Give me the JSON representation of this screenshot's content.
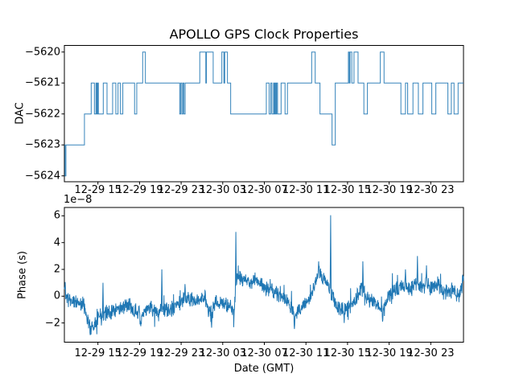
{
  "figure": {
    "background": "#ffffff",
    "line_color": "#1f77b4",
    "axis_color": "#000000"
  },
  "chart_data": [
    {
      "type": "line",
      "subplot": "top",
      "title": "APOLLO GPS Clock Properties",
      "ylabel": "DAC",
      "line_color": "#1f77b4",
      "style": "step-post",
      "xlim_hours": [
        0,
        38.38
      ],
      "ylim": [
        -5624.2,
        -5619.78
      ],
      "yticks": [
        -5620,
        -5621,
        -5622,
        -5623,
        -5624
      ],
      "ytick_labels": [
        "−5620",
        "−5621",
        "−5622",
        "−5623",
        "−5624"
      ],
      "xticks_hours": [
        3.23,
        7.23,
        11.23,
        15.23,
        19.23,
        23.23,
        27.23,
        31.23,
        35.23
      ],
      "xtick_labels": [
        "12-29 15",
        "12-29 19",
        "12-29 23",
        "12-30 03",
        "12-30 07",
        "12-30 11",
        "12-30 15",
        "12-30 19",
        "12-30 23"
      ],
      "grid": false,
      "step_points_hours_dac": [
        [
          0,
          -5623
        ],
        [
          0.06,
          -5624
        ],
        [
          0.15,
          -5623
        ],
        [
          1.93,
          -5622
        ],
        [
          2.58,
          -5621
        ],
        [
          2.89,
          -5622
        ],
        [
          3.04,
          -5621
        ],
        [
          3.12,
          -5622
        ],
        [
          3.2,
          -5621
        ],
        [
          3.27,
          -5622
        ],
        [
          3.74,
          -5621
        ],
        [
          4.1,
          -5622
        ],
        [
          4.64,
          -5621
        ],
        [
          4.95,
          -5622
        ],
        [
          5.16,
          -5621
        ],
        [
          5.39,
          -5622
        ],
        [
          5.62,
          -5621
        ],
        [
          6.75,
          -5622
        ],
        [
          6.96,
          -5621
        ],
        [
          7.53,
          -5620
        ],
        [
          7.79,
          -5621
        ],
        [
          11.09,
          -5622
        ],
        [
          11.19,
          -5621
        ],
        [
          11.3,
          -5622
        ],
        [
          11.4,
          -5621
        ],
        [
          11.5,
          -5622
        ],
        [
          11.61,
          -5621
        ],
        [
          13.02,
          -5620
        ],
        [
          13.6,
          -5621
        ],
        [
          13.66,
          -5620
        ],
        [
          14.31,
          -5621
        ],
        [
          15.14,
          -5620
        ],
        [
          15.34,
          -5621
        ],
        [
          15.42,
          -5620
        ],
        [
          15.68,
          -5621
        ],
        [
          15.99,
          -5622
        ],
        [
          19.42,
          -5621
        ],
        [
          19.69,
          -5622
        ],
        [
          19.85,
          -5621
        ],
        [
          19.96,
          -5622
        ],
        [
          20.12,
          -5621
        ],
        [
          20.19,
          -5622
        ],
        [
          20.27,
          -5621
        ],
        [
          20.35,
          -5622
        ],
        [
          20.41,
          -5621
        ],
        [
          20.5,
          -5622
        ],
        [
          20.84,
          -5621
        ],
        [
          21.22,
          -5622
        ],
        [
          21.45,
          -5621
        ],
        [
          23.78,
          -5620
        ],
        [
          24.12,
          -5621
        ],
        [
          24.58,
          -5622
        ],
        [
          25.74,
          -5623
        ],
        [
          26.05,
          -5621
        ],
        [
          27.31,
          -5620
        ],
        [
          27.4,
          -5621
        ],
        [
          27.47,
          -5620
        ],
        [
          27.64,
          -5621
        ],
        [
          27.85,
          -5620
        ],
        [
          28.24,
          -5621
        ],
        [
          28.8,
          -5622
        ],
        [
          29.14,
          -5621
        ],
        [
          30.38,
          -5620
        ],
        [
          30.74,
          -5621
        ],
        [
          32.36,
          -5622
        ],
        [
          32.8,
          -5621
        ],
        [
          33.01,
          -5622
        ],
        [
          33.52,
          -5621
        ],
        [
          34.04,
          -5622
        ],
        [
          34.48,
          -5621
        ],
        [
          35.33,
          -5622
        ],
        [
          35.72,
          -5621
        ],
        [
          36.88,
          -5622
        ],
        [
          37.21,
          -5621
        ],
        [
          37.47,
          -5622
        ],
        [
          37.86,
          -5621
        ]
      ]
    },
    {
      "type": "line",
      "subplot": "bottom",
      "ylabel": "Phase (s)",
      "xlabel": "Date (GMT)",
      "y_offset_text": "1e−8",
      "line_color": "#1f77b4",
      "xlim_hours": [
        0,
        38.38
      ],
      "ylim_1e8": [
        -3.44,
        6.62
      ],
      "yticks_1e8": [
        6,
        4,
        2,
        0,
        -2
      ],
      "ytick_labels": [
        "6",
        "4",
        "2",
        "0",
        "−2"
      ],
      "xticks_hours": [
        3.23,
        7.23,
        11.23,
        15.23,
        19.23,
        23.23,
        27.23,
        31.23,
        35.23
      ],
      "xtick_labels": [
        "12-29 15",
        "12-29 19",
        "12-29 23",
        "12-30 03",
        "12-30 07",
        "12-30 11",
        "12-30 15",
        "12-30 19",
        "12-30 23"
      ],
      "grid": false,
      "trend_hours_value_1e8": [
        [
          0,
          0.5
        ],
        [
          0.3,
          -0.2
        ],
        [
          1.8,
          -0.6
        ],
        [
          2.2,
          -1.5
        ],
        [
          2.5,
          -2.4
        ],
        [
          2.8,
          -2.2
        ],
        [
          3.2,
          -1.5
        ],
        [
          4.5,
          -1.1
        ],
        [
          5.4,
          -0.9
        ],
        [
          6.2,
          -0.7
        ],
        [
          7.2,
          -1.3
        ],
        [
          7.4,
          -1.7
        ],
        [
          8.1,
          -0.7
        ],
        [
          8.9,
          -1.4
        ],
        [
          9.4,
          -0.9
        ],
        [
          10.1,
          -1.1
        ],
        [
          10.8,
          -0.6
        ],
        [
          11.6,
          -0.2
        ],
        [
          12.4,
          -0.4
        ],
        [
          13.5,
          -0.1
        ],
        [
          14.1,
          -1.6
        ],
        [
          14.5,
          -0.4
        ],
        [
          15.9,
          -0.8
        ],
        [
          16.3,
          -1.2
        ],
        [
          16.6,
          1.4
        ],
        [
          17.8,
          1.0
        ],
        [
          18.6,
          1.3
        ],
        [
          19.2,
          0.6
        ],
        [
          20.1,
          0.3
        ],
        [
          21.0,
          -0.1
        ],
        [
          21.7,
          -0.6
        ],
        [
          22.1,
          -1.6
        ],
        [
          22.8,
          -0.8
        ],
        [
          23.8,
          0.2
        ],
        [
          24.45,
          1.8
        ],
        [
          25.1,
          1.2
        ],
        [
          25.85,
          -0.2
        ],
        [
          26.3,
          -0.9
        ],
        [
          27.1,
          -1.0
        ],
        [
          27.7,
          -0.6
        ],
        [
          28.2,
          0.1
        ],
        [
          28.7,
          0.6
        ],
        [
          29.0,
          -0.2
        ],
        [
          30.2,
          -0.5
        ],
        [
          30.6,
          -1.3
        ],
        [
          31.0,
          -0.2
        ],
        [
          31.7,
          0.4
        ],
        [
          32.5,
          0.7
        ],
        [
          33.3,
          0.5
        ],
        [
          34.0,
          1.0
        ],
        [
          34.4,
          0.7
        ],
        [
          34.8,
          1.0
        ],
        [
          35.2,
          0.6
        ],
        [
          36.0,
          0.8
        ],
        [
          36.8,
          0.3
        ],
        [
          37.5,
          0.4
        ],
        [
          37.9,
          -0.1
        ],
        [
          38.38,
          1.2
        ]
      ],
      "spikes_hours_value_1e8": [
        [
          0.08,
          1.05
        ],
        [
          2.48,
          -2.9
        ],
        [
          3.7,
          1.0
        ],
        [
          7.35,
          -2.25
        ],
        [
          9.36,
          2.0
        ],
        [
          11.6,
          0.9
        ],
        [
          14.16,
          -2.35
        ],
        [
          16.48,
          4.8
        ],
        [
          22.13,
          -2.45
        ],
        [
          24.45,
          2.6
        ],
        [
          25.61,
          6.05
        ],
        [
          26.9,
          -2.0
        ],
        [
          28.7,
          2.6
        ],
        [
          30.6,
          -1.9
        ],
        [
          32.81,
          2.0
        ],
        [
          33.95,
          3.0
        ],
        [
          34.82,
          2.3
        ],
        [
          38.3,
          1.6
        ]
      ],
      "noise": {
        "seed": 11,
        "samples": 1500,
        "jitter1": 0.8,
        "jitter2": 0.5,
        "burst_prob": 0.06,
        "burst_amp": 2.0
      }
    }
  ]
}
